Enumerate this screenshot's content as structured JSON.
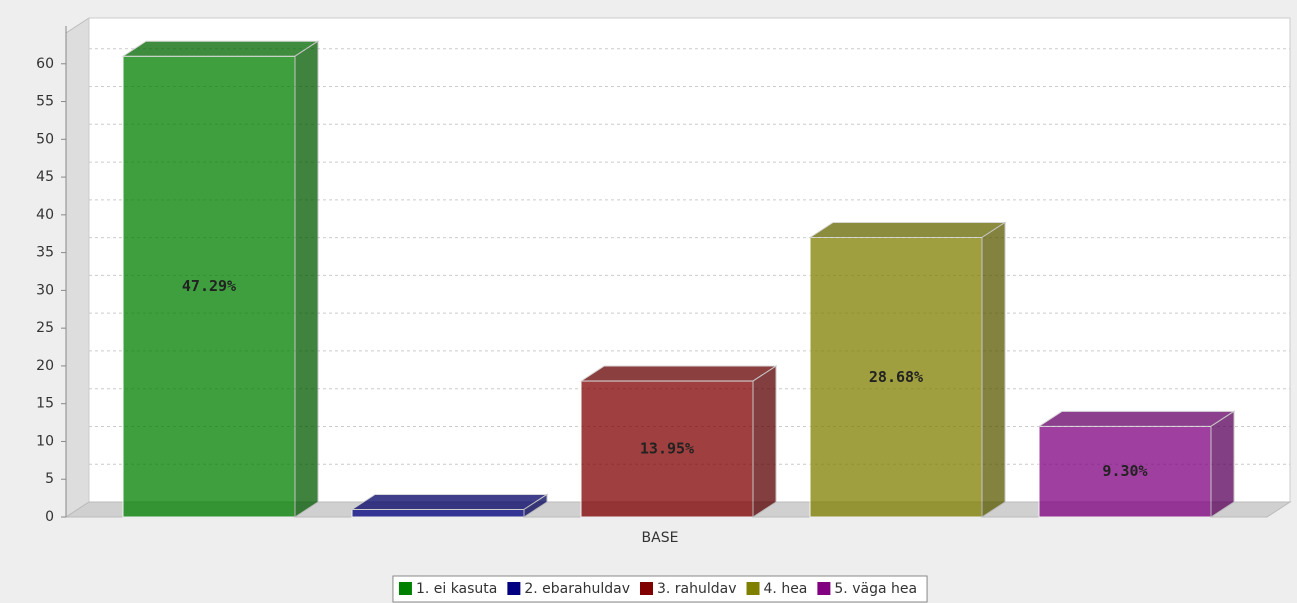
{
  "chart_data": {
    "type": "bar3d",
    "categories": [
      "BASE"
    ],
    "series": [
      {
        "name": "1. ei kasuta",
        "color": "#008000",
        "values": [
          61
        ],
        "value_labels": [
          "47.29%"
        ]
      },
      {
        "name": "2. ebarahuldav",
        "color": "#000080",
        "values": [
          1
        ]
      },
      {
        "name": "3. rahuldav",
        "color": "#800000",
        "values": [
          18
        ],
        "value_labels": [
          "13.95%"
        ]
      },
      {
        "name": "4. hea",
        "color": "#808000",
        "values": [
          37
        ],
        "value_labels": [
          "28.68%"
        ]
      },
      {
        "name": "5. väga hea",
        "color": "#800080",
        "values": [
          12
        ],
        "value_labels": [
          "9.30%"
        ]
      }
    ],
    "ylim": [
      0,
      65
    ],
    "yticks": [
      0,
      5,
      10,
      15,
      20,
      25,
      30,
      35,
      40,
      45,
      50,
      55,
      60
    ],
    "grid": true,
    "legend": "bottom"
  }
}
